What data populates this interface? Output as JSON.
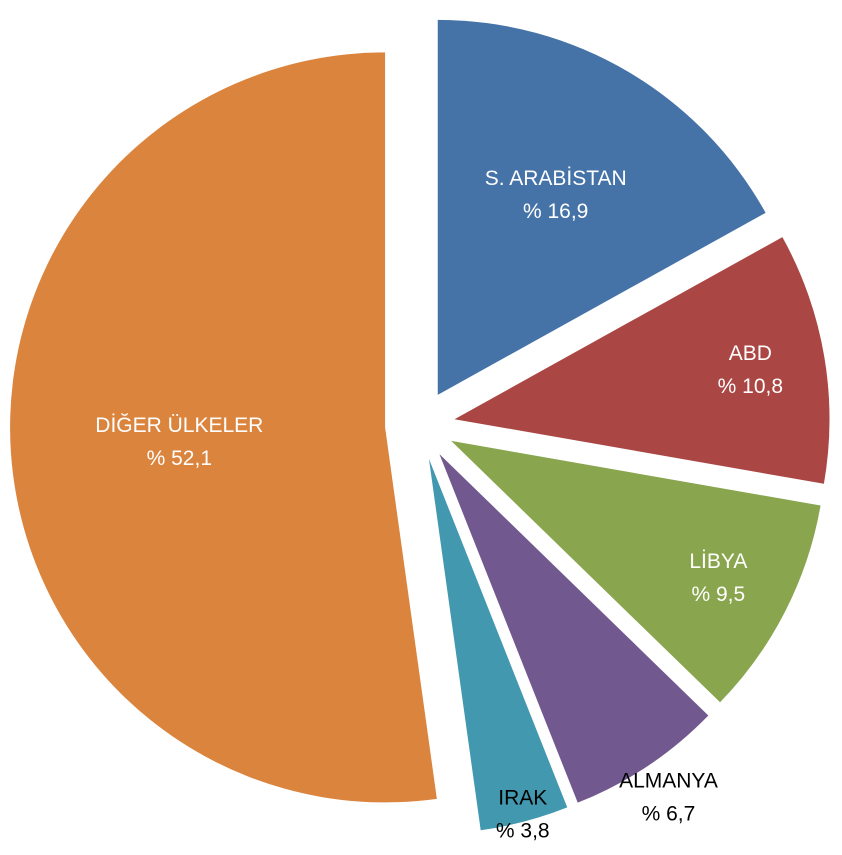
{
  "chart_data": {
    "type": "pie",
    "categories": [
      "S. ARABİSTAN",
      "ABD",
      "LİBYA",
      "ALMANYA",
      "IRAK",
      "DİĞER ÜLKELER"
    ],
    "values": [
      16.9,
      10.8,
      9.5,
      6.7,
      3.8,
      52.1
    ],
    "value_labels": [
      "% 16,9",
      "% 10,8",
      "% 9,5",
      "% 6,7",
      "% 3,8",
      "% 52,1"
    ],
    "colors": [
      "#4572a7",
      "#aa4643",
      "#89a54e",
      "#71588f",
      "#4198af",
      "#db843d"
    ]
  }
}
